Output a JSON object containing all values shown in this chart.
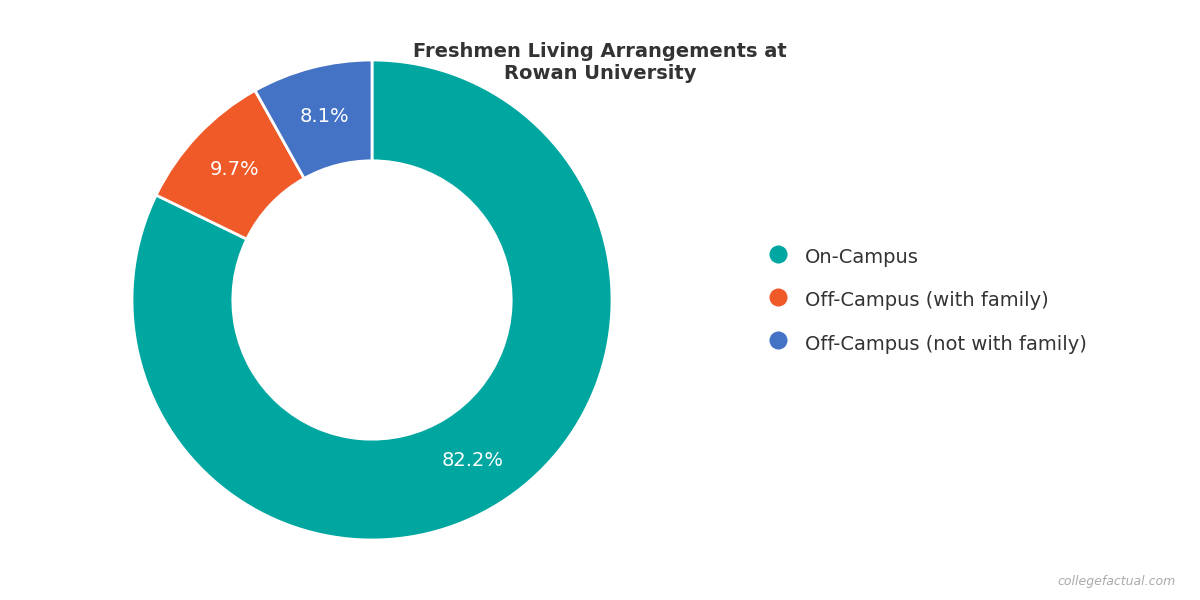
{
  "title": "Freshmen Living Arrangements at\nRowan University",
  "labels": [
    "On-Campus",
    "Off-Campus (with family)",
    "Off-Campus (not with family)"
  ],
  "values": [
    82.2,
    9.7,
    8.1
  ],
  "colors": [
    "#00a6a0",
    "#f05a28",
    "#4472c4"
  ],
  "pct_labels": [
    "82.2%",
    "9.7%",
    "8.1%"
  ],
  "pct_colors": [
    "white",
    "white",
    "white"
  ],
  "donut_width": 0.42,
  "title_fontsize": 14,
  "legend_fontsize": 14,
  "pct_fontsize": 14,
  "watermark": "collegefactual.com",
  "background_color": "#ffffff"
}
